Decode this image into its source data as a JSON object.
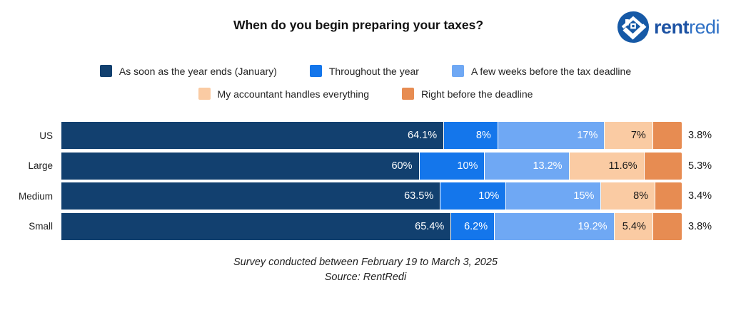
{
  "title": "When do you begin preparing your taxes?",
  "logo": {
    "bold": "rent",
    "light": "redi",
    "icon": "rentredi-house-icon"
  },
  "chart_data": {
    "type": "bar",
    "stacked": true,
    "orientation": "horizontal",
    "xlim": [
      0,
      100
    ],
    "grid": false,
    "legend_position": "top",
    "categories": [
      "US",
      "Large",
      "Medium",
      "Small"
    ],
    "series": [
      {
        "name": "As soon as the year ends (January)",
        "color": "#12406F",
        "label_color": "#FFFFFF",
        "label_position": "inside-right",
        "values": [
          64.1,
          60,
          63.5,
          65.4
        ],
        "labels": [
          "64.1%",
          "60%",
          "63.5%",
          "65.4%"
        ]
      },
      {
        "name": "Throughout the year",
        "color": "#1476EB",
        "label_color": "#FFFFFF",
        "label_position": "inside-right",
        "values": [
          8,
          10,
          10,
          6.2
        ],
        "labels": [
          "8%",
          "10%",
          "10%",
          "6.2%"
        ]
      },
      {
        "name": "A few weeks before the tax deadline",
        "color": "#6FA8F4",
        "label_color": "#FFFFFF",
        "label_position": "inside-right",
        "values": [
          17,
          13.2,
          15,
          19.2
        ],
        "labels": [
          "17%",
          "13.2%",
          "15%",
          "19.2%"
        ]
      },
      {
        "name": "My accountant handles everything",
        "color": "#FACBA3",
        "label_color": "#1A1A1A",
        "label_position": "inside-right",
        "values": [
          7,
          11.6,
          8,
          5.4
        ],
        "labels": [
          "7%",
          "11.6%",
          "8%",
          "5.4%"
        ]
      },
      {
        "name": "Right before the deadline",
        "color": "#E78C52",
        "label_color": "#1A1A1A",
        "label_position": "outside-right",
        "values": [
          3.8,
          5.3,
          3.4,
          3.8
        ],
        "labels": [
          "3.8%",
          "5.3%",
          "3.4%",
          "3.8%"
        ]
      }
    ],
    "legend_rows": [
      [
        0,
        1,
        2
      ],
      [
        3,
        4
      ]
    ]
  },
  "footer": {
    "line1": "Survey conducted between February 19 to March 3, 2025",
    "line2": "Source: RentRedi"
  }
}
